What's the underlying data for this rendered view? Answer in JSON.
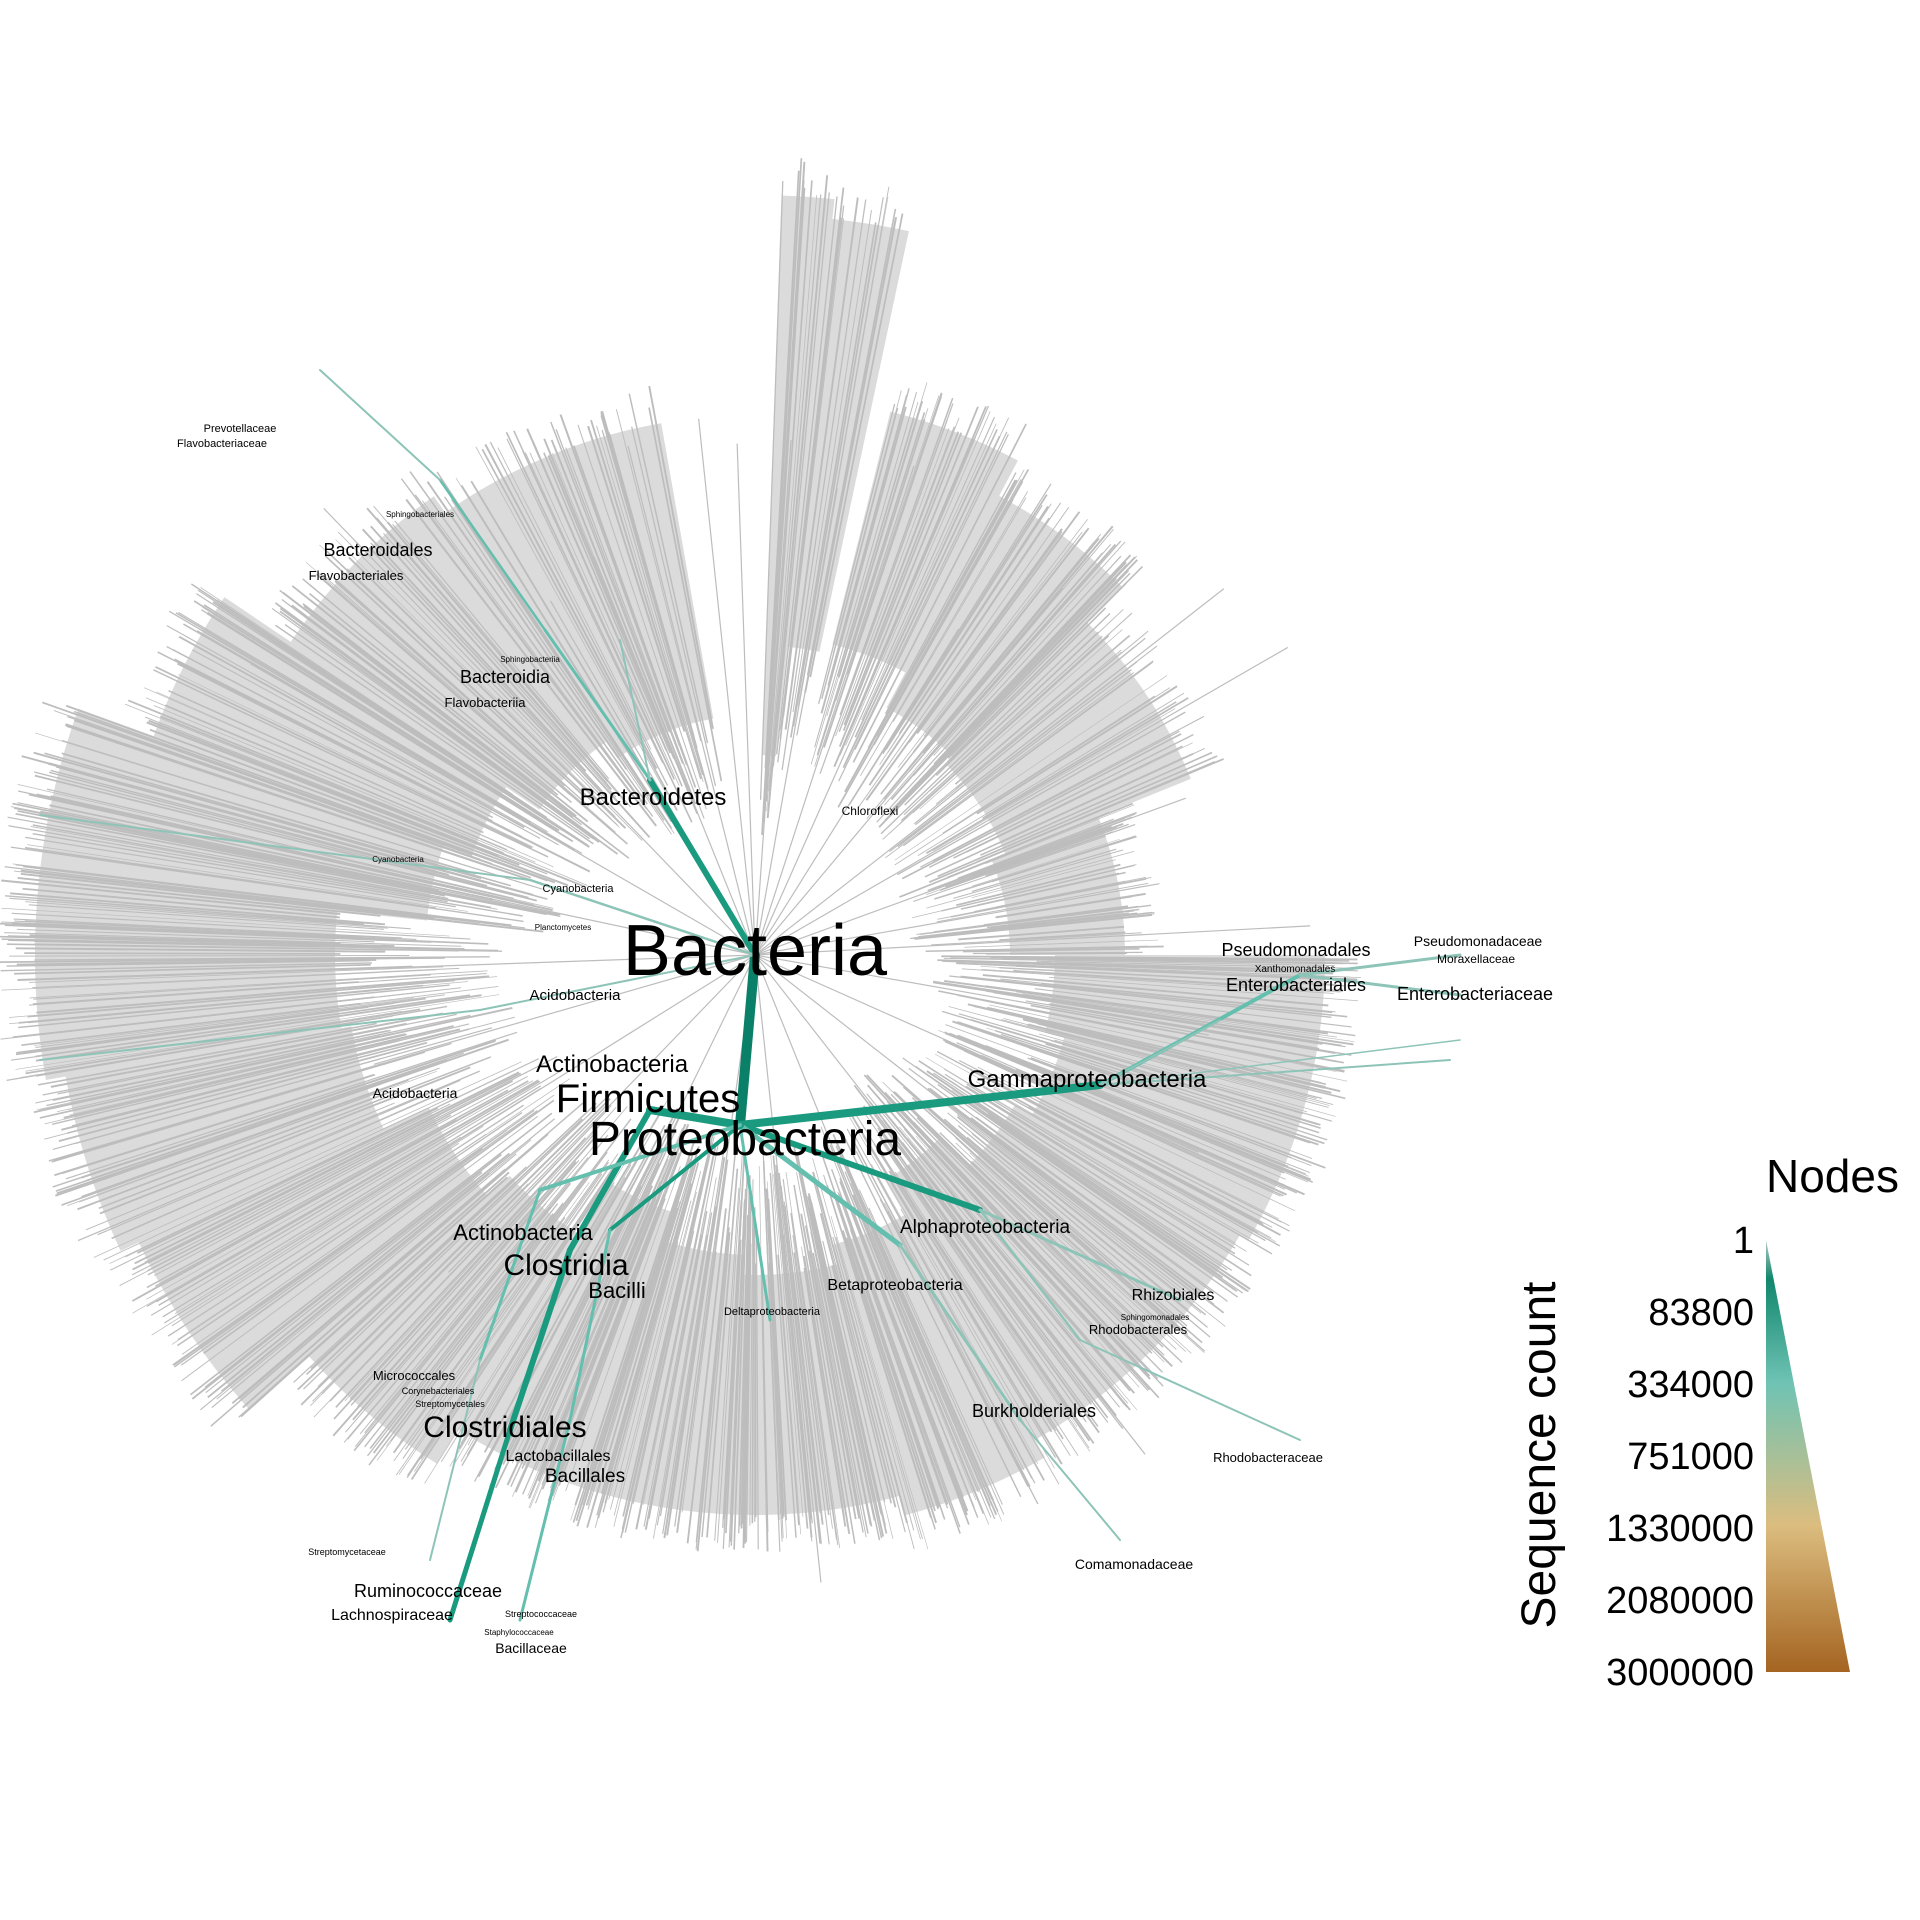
{
  "colors": {
    "grey_branch": "#bdbdbd",
    "low": "#8ec4b8",
    "mid": "#64bfae",
    "high": "#1a9a7e",
    "top": "#0b8068",
    "scale_top": "#b3c9c3",
    "scale_mid": "#10876c",
    "scale_aqua": "#6fc3b4",
    "scale_tan": "#dbbd7f",
    "scale_bottom": "#a56421"
  },
  "labels": [
    {
      "id": "bacteria",
      "text": "Bacteria",
      "size": 72
    },
    {
      "id": "proteobacteria",
      "text": "Proteobacteria",
      "size": 48
    },
    {
      "id": "firmicutes",
      "text": "Firmicutes",
      "size": 40
    },
    {
      "id": "actinobacteria-phylum",
      "text": "Actinobacteria",
      "size": 24
    },
    {
      "id": "bacteroidetes",
      "text": "Bacteroidetes",
      "size": 24
    },
    {
      "id": "chloroflexi",
      "text": "Chloroflexi",
      "size": 12
    },
    {
      "id": "cyanobacteria-phylum",
      "text": "Cyanobacteria",
      "size": 11
    },
    {
      "id": "cyanobacteria-class",
      "text": "Cyanobacteria",
      "size": 8
    },
    {
      "id": "planctomycetes",
      "text": "Planctomycetes",
      "size": 8
    },
    {
      "id": "acidobacteria-phylum",
      "text": "Acidobacteria",
      "size": 15
    },
    {
      "id": "acidobacteria-class",
      "text": "Acidobacteria",
      "size": 14
    },
    {
      "id": "gammaproteobacteria",
      "text": "Gammaproteobacteria",
      "size": 24
    },
    {
      "id": "alphaproteobacteria",
      "text": "Alphaproteobacteria",
      "size": 19
    },
    {
      "id": "betaproteobacteria",
      "text": "Betaproteobacteria",
      "size": 16
    },
    {
      "id": "deltaproteobacteria",
      "text": "Deltaproteobacteria",
      "size": 11
    },
    {
      "id": "actinobacteria-class",
      "text": "Actinobacteria",
      "size": 22
    },
    {
      "id": "clostridia",
      "text": "Clostridia",
      "size": 30
    },
    {
      "id": "bacilli",
      "text": "Bacilli",
      "size": 22
    },
    {
      "id": "bacteroidia",
      "text": "Bacteroidia",
      "size": 18
    },
    {
      "id": "flavobacteriia",
      "text": "Flavobacteriia",
      "size": 13
    },
    {
      "id": "sphingobacteriia",
      "text": "Sphingobacteriia",
      "size": 8
    },
    {
      "id": "bacteroidales",
      "text": "Bacteroidales",
      "size": 18
    },
    {
      "id": "flavobacteriales",
      "text": "Flavobacteriales",
      "size": 13
    },
    {
      "id": "sphingobacteriales",
      "text": "Sphingobacteriales",
      "size": 8
    },
    {
      "id": "prevotellaceae",
      "text": "Prevotellaceae",
      "size": 11
    },
    {
      "id": "flavobacteriaceae",
      "text": "Flavobacteriaceae",
      "size": 11
    },
    {
      "id": "pseudomonadales",
      "text": "Pseudomonadales",
      "size": 18
    },
    {
      "id": "xanthomonadales",
      "text": "Xanthomonadales",
      "size": 10
    },
    {
      "id": "enterobacteriales",
      "text": "Enterobacteriales",
      "size": 18
    },
    {
      "id": "pseudomonadaceae",
      "text": "Pseudomonadaceae",
      "size": 14
    },
    {
      "id": "moraxellaceae",
      "text": "Moraxellaceae",
      "size": 12
    },
    {
      "id": "enterobacteriaceae",
      "text": "Enterobacteriaceae",
      "size": 18
    },
    {
      "id": "rhizobiales",
      "text": "Rhizobiales",
      "size": 16
    },
    {
      "id": "sphingomonadales",
      "text": "Sphingomonadales",
      "size": 8
    },
    {
      "id": "rhodobacterales",
      "text": "Rhodobacterales",
      "size": 13
    },
    {
      "id": "rhodobacteraceae",
      "text": "Rhodobacteraceae",
      "size": 13
    },
    {
      "id": "burkholderiales",
      "text": "Burkholderiales",
      "size": 18
    },
    {
      "id": "comamonadaceae",
      "text": "Comamonadaceae",
      "size": 14
    },
    {
      "id": "micrococcales",
      "text": "Micrococcales",
      "size": 13
    },
    {
      "id": "corynebacteriales",
      "text": "Corynebacteriales",
      "size": 9
    },
    {
      "id": "streptomycetales",
      "text": "Streptomycetales",
      "size": 9
    },
    {
      "id": "clostridiales",
      "text": "Clostridiales",
      "size": 30
    },
    {
      "id": "lactobacillales",
      "text": "Lactobacillales",
      "size": 16
    },
    {
      "id": "bacillales",
      "text": "Bacillales",
      "size": 19
    },
    {
      "id": "streptomycetaceae",
      "text": "Streptomycetaceae",
      "size": 9
    },
    {
      "id": "ruminococcaceae",
      "text": "Ruminococcaceae",
      "size": 18
    },
    {
      "id": "lachnospiraceae",
      "text": "Lachnospiraceae",
      "size": 16
    },
    {
      "id": "streptococcaceae",
      "text": "Streptococcaceae",
      "size": 9
    },
    {
      "id": "staphylococcaceae",
      "text": "Staphylococcaceae",
      "size": 8
    },
    {
      "id": "bacillaceae",
      "text": "Bacillaceae",
      "size": 14
    }
  ],
  "legend": {
    "title": "Nodes",
    "axis_label": "Sequence count",
    "ticks": [
      "1",
      "83800",
      "334000",
      "751000",
      "1330000",
      "2080000",
      "3000000"
    ]
  }
}
